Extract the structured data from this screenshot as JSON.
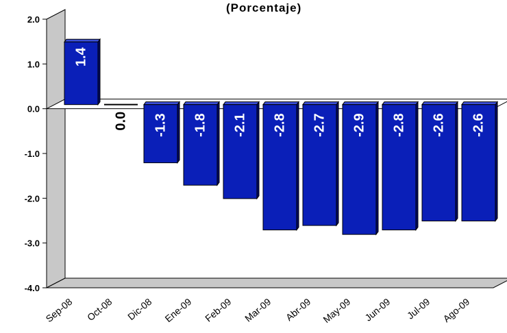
{
  "chart_data": {
    "type": "bar",
    "title": "(Porcentaje)",
    "categories": [
      "Sep-08",
      "Oct-08",
      "Dic-08",
      "Ene-09",
      "Feb-09",
      "Mar-09",
      "Abr-09",
      "May-09",
      "Jun-09",
      "Jul-09",
      "Ago-09"
    ],
    "values": [
      1.4,
      0.0,
      -1.3,
      -1.8,
      -2.1,
      -2.8,
      -2.7,
      -2.9,
      -2.8,
      -2.6,
      -2.6
    ],
    "data_labels": [
      "1.4",
      "0.0",
      "-1.3",
      "-1.8",
      "-2.1",
      "-2.8",
      "-2.7",
      "-2.9",
      "-2.8",
      "-2.6",
      "-2.6"
    ],
    "y_ticks": [
      2.0,
      1.0,
      0.0,
      -1.0,
      -2.0,
      -3.0,
      -4.0
    ],
    "y_tick_labels": [
      "2.0",
      "1.0",
      "0.0",
      "-1.0",
      "-2.0",
      "-3.0",
      "-4.0"
    ],
    "ylim": [
      -4.0,
      2.0
    ],
    "grid": false,
    "legend": "none",
    "bar_color": "#0a1fb8",
    "bar_side_color": "#000a66",
    "wall_color": "#c8c8c8"
  }
}
